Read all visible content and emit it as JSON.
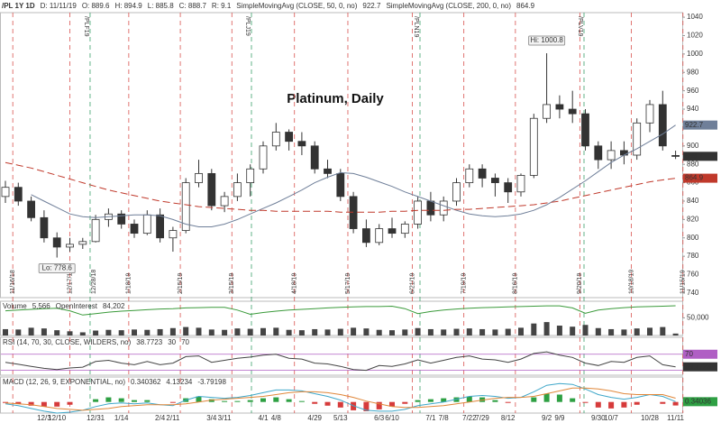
{
  "header": {
    "symbol": "/PL 1Y 1D",
    "fields": [
      "D: 11/11/19",
      "O: 889.6",
      "H: 894.9",
      "L: 885.8",
      "C: 888.7",
      "R: 9.1"
    ]
  },
  "chart_data": [
    {
      "type": "candlestick",
      "title": "Platinum, Daily",
      "categories": [
        null,
        null,
        null,
        "12/3",
        "12/10",
        null,
        null,
        "12/31",
        null,
        "1/14",
        null,
        null,
        "2/4",
        "2/11",
        null,
        null,
        "3/4",
        "3/11",
        null,
        null,
        "4/1",
        "4/8",
        null,
        null,
        "4/29",
        null,
        "5/13",
        null,
        null,
        "6/3",
        "6/10",
        null,
        null,
        "7/1",
        "7/8",
        null,
        "7/22",
        "7/29",
        null,
        "8/12",
        null,
        null,
        "9/2",
        "9/9",
        null,
        null,
        "9/30",
        "10/7",
        null,
        null,
        "10/28",
        null,
        "11/11"
      ],
      "open": [
        845,
        855,
        840,
        822,
        800,
        790,
        793,
        796,
        820,
        826,
        815,
        805,
        825,
        800,
        808,
        860,
        870,
        835,
        845,
        860,
        875,
        900,
        915,
        905,
        900,
        875,
        870,
        845,
        810,
        795,
        810,
        805,
        815,
        840,
        825,
        840,
        860,
        875,
        865,
        860,
        850,
        868,
        930,
        945,
        940,
        935,
        900,
        885,
        895,
        890,
        925,
        945,
        889.6
      ],
      "high": [
        862,
        860,
        845,
        830,
        806,
        800,
        800,
        825,
        832,
        830,
        820,
        830,
        832,
        812,
        865,
        885,
        875,
        850,
        870,
        880,
        905,
        925,
        918,
        915,
        905,
        885,
        875,
        850,
        820,
        815,
        822,
        818,
        845,
        850,
        845,
        865,
        880,
        880,
        870,
        865,
        870,
        935,
        1000.8,
        955,
        960,
        940,
        905,
        905,
        905,
        930,
        950,
        960,
        894.9
      ],
      "low": [
        838,
        835,
        818,
        795,
        778.6,
        785,
        788,
        795,
        812,
        810,
        800,
        803,
        795,
        785,
        805,
        855,
        830,
        828,
        840,
        845,
        870,
        895,
        895,
        890,
        870,
        865,
        840,
        805,
        790,
        792,
        800,
        800,
        810,
        818,
        818,
        835,
        855,
        855,
        845,
        838,
        845,
        865,
        925,
        930,
        925,
        895,
        875,
        875,
        880,
        885,
        915,
        895,
        885.8
      ],
      "close": [
        855,
        840,
        822,
        800,
        790,
        793,
        796,
        820,
        826,
        815,
        805,
        825,
        800,
        808,
        860,
        870,
        835,
        845,
        860,
        875,
        900,
        915,
        905,
        900,
        875,
        870,
        845,
        810,
        795,
        810,
        805,
        815,
        840,
        825,
        840,
        860,
        875,
        865,
        860,
        850,
        868,
        930,
        945,
        940,
        935,
        900,
        885,
        895,
        890,
        925,
        945,
        900,
        888.7
      ],
      "up_color": "#ffffff",
      "down_color": "#333333",
      "candle_stroke": "#333333",
      "series": [
        {
          "name": "SimpleMovingAvg (CLOSE, 50, 0, no)",
          "color": "#6f7f99",
          "values": [
            null,
            null,
            847,
            840,
            833,
            826,
            823,
            822,
            823,
            824,
            825,
            825,
            824,
            820,
            815,
            812,
            812,
            815,
            820,
            826,
            832,
            838,
            845,
            852,
            860,
            866,
            871,
            870,
            866,
            861,
            856,
            850,
            845,
            840,
            835,
            830,
            826,
            824,
            823,
            824,
            826,
            830,
            836,
            844,
            853,
            862,
            872,
            882,
            890,
            897,
            905,
            913,
            922.7
          ]
        },
        {
          "name": "SimpleMovingAvg (CLOSE, 200, 0, no)",
          "color": "#c0392b",
          "dashed": true,
          "values": [
            882,
            879,
            876,
            872,
            868,
            864,
            860,
            856,
            852,
            849,
            846,
            843,
            840,
            838,
            836,
            834,
            833,
            832,
            831,
            830,
            830,
            829,
            829,
            829,
            829,
            829,
            828,
            828,
            828,
            828,
            829,
            829,
            830,
            830,
            830,
            831,
            831,
            832,
            833,
            834,
            835,
            836,
            838,
            840,
            843,
            846,
            849,
            852,
            855,
            858,
            861,
            863,
            864.9
          ]
        }
      ],
      "ylim": [
        735,
        1045
      ],
      "yticks": [
        740,
        760,
        780,
        800,
        820,
        840,
        860,
        880,
        900,
        920,
        940,
        960,
        980,
        1000,
        1020,
        1040
      ],
      "annotations": [
        "Hi: 1000.8",
        "Lo: 778.6"
      ],
      "expirations": [
        "11/16/18",
        "12/17/18",
        "1/18/19",
        "2/15/19",
        "3/15/19",
        "4/18/19",
        "5/17/19",
        "6/21/19",
        "7/19/19",
        "8/16/19",
        "9/20/19",
        "10/18/19",
        "11/15/19"
      ],
      "expiration_color": "#d9534f",
      "rolls": [
        {
          "label": "/PLF19",
          "date": "12/28/18"
        },
        {
          "label": "/PLJ19"
        },
        {
          "label": "/PLN19"
        },
        {
          "label": "/PLV19"
        }
      ],
      "roll_color": "#3aa06a"
    },
    {
      "type": "bar",
      "title": "Volume",
      "color": "#444444",
      "values": [
        18000,
        17000,
        22000,
        20000,
        15000,
        12000,
        9000,
        14000,
        16000,
        15000,
        17000,
        16000,
        18000,
        21000,
        24000,
        22000,
        17000,
        16000,
        20000,
        19000,
        21000,
        22000,
        16000,
        15000,
        18000,
        17000,
        19000,
        22000,
        20000,
        16000,
        15000,
        17000,
        21000,
        18000,
        17000,
        19000,
        20000,
        18000,
        17000,
        19000,
        22000,
        34000,
        38000,
        28000,
        25000,
        30000,
        21000,
        18000,
        17000,
        20000,
        22000,
        24000,
        5566
      ],
      "value_labels": [
        null,
        null,
        null,
        null,
        null,
        null,
        null,
        null,
        null,
        null,
        null,
        null,
        null,
        null,
        null,
        null,
        null,
        null,
        null,
        null,
        null,
        null,
        null,
        null,
        null,
        null,
        null,
        null,
        null,
        null,
        null,
        null,
        null,
        null,
        null,
        null,
        null,
        null,
        null,
        null,
        null,
        null,
        null,
        null,
        null,
        null,
        null,
        null,
        null,
        null,
        null,
        null,
        "5,566"
      ],
      "series": [
        {
          "name": "OpenInterest",
          "color": "#3a9a3a",
          "values": [
            70000,
            72000,
            74000,
            76000,
            77000,
            70000,
            58000,
            62000,
            66000,
            69000,
            71000,
            73000,
            75000,
            76000,
            78000,
            79000,
            80000,
            80000,
            72000,
            60000,
            65000,
            69000,
            72000,
            74000,
            76000,
            78000,
            80000,
            81000,
            82000,
            82000,
            83000,
            76000,
            62000,
            68000,
            72000,
            75000,
            77000,
            79000,
            80000,
            81000,
            82000,
            83000,
            84000,
            84000,
            78000,
            63000,
            72000,
            76000,
            79000,
            81000,
            82000,
            83000,
            84202
          ],
          "value_labels": [
            null,
            null,
            null,
            null,
            null,
            null,
            null,
            null,
            null,
            null,
            null,
            null,
            null,
            null,
            null,
            null,
            null,
            null,
            null,
            null,
            null,
            null,
            null,
            null,
            null,
            null,
            null,
            null,
            null,
            null,
            null,
            null,
            null,
            null,
            null,
            null,
            null,
            null,
            null,
            null,
            null,
            null,
            null,
            null,
            null,
            null,
            null,
            null,
            null,
            null,
            null,
            null,
            "84,202"
          ]
        }
      ],
      "ylim": [
        0,
        97000
      ],
      "yticks": [
        {
          "value": 50000,
          "label": "50,000"
        }
      ]
    },
    {
      "type": "line",
      "title": "RSI (14, 70, 30, CLOSE, WILDERS, no)",
      "color": "#444444",
      "values": [
        50,
        45,
        40,
        35,
        32,
        36,
        38,
        52,
        55,
        48,
        44,
        52,
        44,
        48,
        64,
        66,
        50,
        55,
        60,
        63,
        68,
        70,
        60,
        58,
        48,
        46,
        40,
        32,
        30,
        42,
        40,
        46,
        56,
        48,
        55,
        62,
        66,
        58,
        56,
        50,
        58,
        72,
        76,
        68,
        62,
        48,
        42,
        52,
        50,
        62,
        66,
        44,
        38.7723
      ],
      "levels": [
        30,
        70
      ],
      "level_color": "#b05fc4",
      "ylim": [
        18,
        112
      ],
      "yticks": [
        70
      ]
    },
    {
      "type": "macd",
      "title": "MACD (12, 26, 9, EXPONENTIAL, no)",
      "series": [
        {
          "color": "#3fa7c9",
          "values": [
            -2,
            -4,
            -7,
            -10,
            -12,
            -11,
            -9,
            -5,
            -2,
            -1,
            -2,
            -1,
            -3,
            -4,
            2,
            6,
            5,
            4,
            5,
            7,
            10,
            13,
            13,
            12,
            9,
            6,
            2,
            -4,
            -9,
            -10,
            -10,
            -8,
            -4,
            -2,
            0,
            3,
            6,
            7,
            6,
            4,
            5,
            11,
            18,
            20,
            19,
            14,
            8,
            5,
            3,
            5,
            8,
            6,
            0.340362
          ],
          "value_labels": [
            null,
            null,
            null,
            null,
            null,
            null,
            null,
            null,
            null,
            null,
            null,
            null,
            null,
            null,
            null,
            null,
            null,
            null,
            null,
            null,
            null,
            null,
            null,
            null,
            null,
            null,
            null,
            null,
            null,
            null,
            null,
            null,
            null,
            null,
            null,
            null,
            null,
            null,
            null,
            null,
            null,
            null,
            null,
            null,
            null,
            null,
            null,
            null,
            null,
            null,
            null,
            null,
            "0.34036"
          ]
        },
        {
          "color": "#e0873a",
          "values": [
            -1,
            -2,
            -3,
            -5,
            -7,
            -8,
            -9,
            -8,
            -7,
            -5,
            -4,
            -3,
            -3,
            -3,
            -2,
            0,
            2,
            3,
            4,
            5,
            6,
            8,
            10,
            11,
            11,
            10,
            8,
            5,
            1,
            -2,
            -5,
            -6,
            -6,
            -5,
            -4,
            -2,
            0,
            2,
            4,
            5,
            5,
            6,
            9,
            12,
            15,
            15,
            14,
            12,
            9,
            8,
            8,
            8,
            4.13234
          ]
        },
        {
          "type": "histogram",
          "color_up": "#2ea043",
          "color_down": "#d63b3b",
          "values": [
            -1,
            -2,
            -4,
            -5,
            -5,
            -3,
            0,
            3,
            5,
            4,
            2,
            2,
            0,
            -1,
            4,
            6,
            3,
            1,
            1,
            2,
            4,
            5,
            3,
            1,
            -2,
            -4,
            -6,
            -9,
            -10,
            -8,
            -5,
            -2,
            2,
            3,
            4,
            5,
            6,
            5,
            2,
            -1,
            0,
            5,
            9,
            8,
            4,
            -1,
            -6,
            -7,
            -6,
            -3,
            0,
            -2,
            -3.79198
          ]
        }
      ],
      "ylim": [
        -12,
        27
      ]
    }
  ]
}
